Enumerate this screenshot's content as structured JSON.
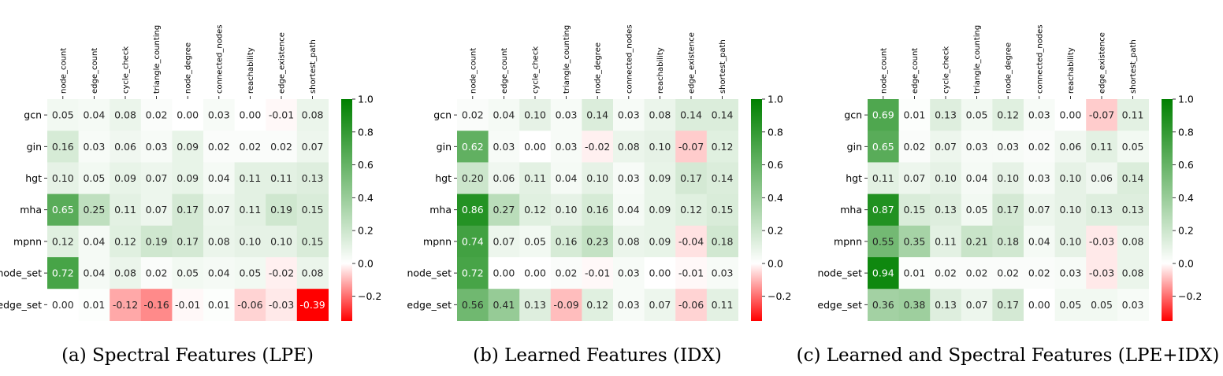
{
  "chart_data": [
    {
      "type": "heatmap",
      "caption": "(a) Spectral Features (LPE)",
      "rows": [
        "gcn",
        "gin",
        "hgt",
        "mha",
        "mpnn",
        "node_set",
        "edge_set"
      ],
      "columns": [
        "node_count",
        "edge_count",
        "cycle_check",
        "triangle_counting",
        "node_degree",
        "connected_nodes",
        "reachability",
        "edge_existence",
        "shortest_path"
      ],
      "values": [
        [
          0.05,
          0.04,
          0.08,
          0.02,
          0.0,
          0.03,
          0.0,
          -0.01,
          0.08
        ],
        [
          0.16,
          0.03,
          0.06,
          0.03,
          0.09,
          0.02,
          0.02,
          0.02,
          0.07
        ],
        [
          0.1,
          0.05,
          0.09,
          0.07,
          0.09,
          0.04,
          0.11,
          0.11,
          0.13
        ],
        [
          0.65,
          0.25,
          0.11,
          0.07,
          0.17,
          0.07,
          0.11,
          0.19,
          0.15
        ],
        [
          0.12,
          0.04,
          0.12,
          0.19,
          0.17,
          0.08,
          0.1,
          0.1,
          0.15
        ],
        [
          0.72,
          0.04,
          0.08,
          0.02,
          0.05,
          0.04,
          0.05,
          -0.02,
          0.08
        ],
        [
          0.0,
          0.01,
          -0.12,
          -0.16,
          -0.01,
          0.01,
          -0.06,
          -0.03,
          -0.39
        ]
      ],
      "colorbar": {
        "min": -0.35,
        "max": 1.0,
        "ticks": [
          "1.0",
          "0.8",
          "0.6",
          "0.4",
          "0.2",
          "0.0",
          "−0.2"
        ],
        "tick_values": [
          1.0,
          0.8,
          0.6,
          0.4,
          0.2,
          0.0,
          -0.2
        ]
      }
    },
    {
      "type": "heatmap",
      "caption": "(b) Learned Features (IDX)",
      "rows": [
        "gcn",
        "gin",
        "hgt",
        "mha",
        "mpnn",
        "node_set",
        "edge_set"
      ],
      "columns": [
        "node_count",
        "edge_count",
        "cycle_check",
        "triangle_counting",
        "node_degree",
        "connected_nodes",
        "reachability",
        "edge_existence",
        "shortest_path"
      ],
      "values": [
        [
          0.02,
          0.04,
          0.1,
          0.03,
          0.14,
          0.03,
          0.08,
          0.14,
          0.14
        ],
        [
          0.62,
          0.03,
          0.0,
          0.03,
          -0.02,
          0.08,
          0.1,
          -0.07,
          0.12
        ],
        [
          0.2,
          0.06,
          0.11,
          0.04,
          0.1,
          0.03,
          0.09,
          0.17,
          0.14
        ],
        [
          0.86,
          0.27,
          0.12,
          0.1,
          0.16,
          0.04,
          0.09,
          0.12,
          0.15
        ],
        [
          0.74,
          0.07,
          0.05,
          0.16,
          0.23,
          0.08,
          0.09,
          -0.04,
          0.18
        ],
        [
          0.72,
          0.0,
          0.0,
          0.02,
          -0.01,
          0.03,
          0.0,
          -0.01,
          0.03
        ],
        [
          0.56,
          0.41,
          0.13,
          -0.09,
          0.12,
          0.03,
          0.07,
          -0.06,
          0.11
        ]
      ],
      "colorbar": {
        "min": -0.35,
        "max": 1.0,
        "ticks": [
          "1.0",
          "0.8",
          "0.6",
          "0.4",
          "0.2",
          "0.0",
          "−0.2"
        ],
        "tick_values": [
          1.0,
          0.8,
          0.6,
          0.4,
          0.2,
          0.0,
          -0.2
        ]
      }
    },
    {
      "type": "heatmap",
      "caption": "(c) Learned and Spectral Features (LPE+IDX)",
      "rows": [
        "gcn",
        "gin",
        "hgt",
        "mha",
        "mpnn",
        "node_set",
        "edge_set"
      ],
      "columns": [
        "node_count",
        "edge_count",
        "cycle_check",
        "triangle_counting",
        "node_degree",
        "connected_nodes",
        "reachability",
        "edge_existence",
        "shortest_path"
      ],
      "values": [
        [
          0.69,
          0.01,
          0.13,
          0.05,
          0.12,
          0.03,
          0.0,
          -0.07,
          0.11
        ],
        [
          0.65,
          0.02,
          0.07,
          0.03,
          0.03,
          0.02,
          0.06,
          0.11,
          0.05
        ],
        [
          0.11,
          0.07,
          0.1,
          0.04,
          0.1,
          0.03,
          0.1,
          0.06,
          0.14
        ],
        [
          0.87,
          0.15,
          0.13,
          0.05,
          0.17,
          0.07,
          0.1,
          0.13,
          0.13
        ],
        [
          0.55,
          0.35,
          0.11,
          0.21,
          0.18,
          0.04,
          0.1,
          -0.03,
          0.08
        ],
        [
          0.94,
          0.01,
          0.02,
          0.02,
          0.02,
          0.02,
          0.03,
          -0.03,
          0.08
        ],
        [
          0.36,
          0.38,
          0.13,
          0.07,
          0.17,
          0.0,
          0.05,
          0.05,
          0.03
        ]
      ],
      "colorbar": {
        "min": -0.35,
        "max": 1.0,
        "ticks": [
          "1.0",
          "0.8",
          "0.6",
          "0.4",
          "0.2",
          "0.0",
          "−0.2"
        ],
        "tick_values": [
          1.0,
          0.8,
          0.6,
          0.4,
          0.2,
          0.0,
          -0.2
        ]
      }
    }
  ]
}
